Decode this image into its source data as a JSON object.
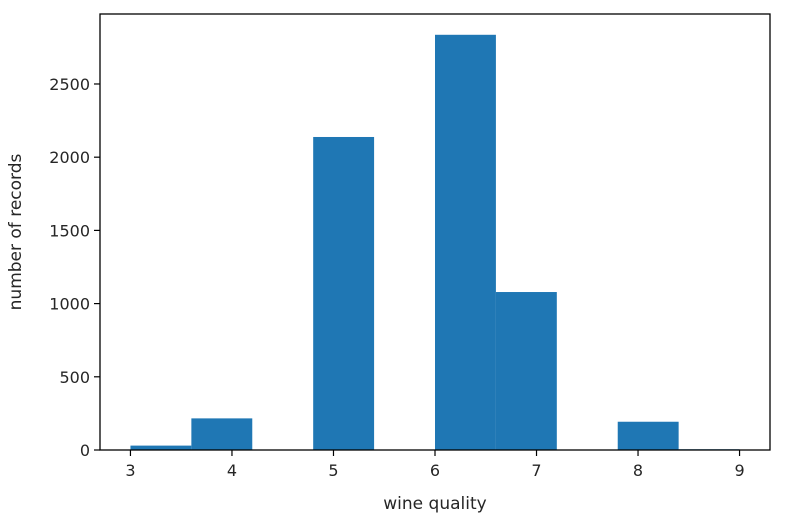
{
  "chart_data": {
    "type": "bar",
    "histogram": true,
    "bin_edges": [
      3.0,
      3.6,
      4.2,
      4.8,
      5.4,
      6.0,
      6.6,
      7.2,
      7.8,
      8.4,
      9.0
    ],
    "values": [
      30,
      216,
      0,
      2138,
      0,
      2836,
      1079,
      0,
      193,
      5
    ],
    "xlabel": "wine quality",
    "ylabel": "number of records",
    "xlim": [
      2.7,
      9.3
    ],
    "ylim": [
      0,
      2978
    ],
    "xticks": [
      3,
      4,
      5,
      6,
      7,
      8,
      9
    ],
    "yticks": [
      0,
      500,
      1000,
      1500,
      2000,
      2500
    ],
    "grid": false,
    "legend": "none",
    "bar_color": "#1f77b4"
  }
}
